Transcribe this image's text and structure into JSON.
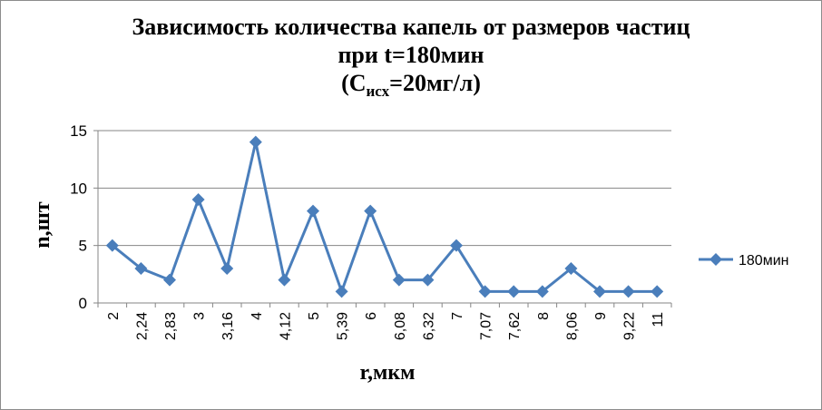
{
  "chart_data": {
    "type": "line",
    "title": {
      "line1": "Зависимость количества капель от размеров частиц",
      "line2": "при t=180мин",
      "line3_prefix": "(C",
      "line3_sub": "исх",
      "line3_suffix": "=20мг/л)"
    },
    "xlabel": "r,мкм",
    "ylabel": "n,шт",
    "categories": [
      "2",
      "2,24",
      "2,83",
      "3",
      "3,16",
      "4",
      "4,12",
      "5",
      "5,39",
      "6",
      "6,08",
      "6,32",
      "7",
      "7,07",
      "7,62",
      "8",
      "8,06",
      "9",
      "9,22",
      "11"
    ],
    "series": [
      {
        "name": "180мин",
        "values": [
          5,
          3,
          2,
          9,
          3,
          14,
          2,
          8,
          1,
          8,
          2,
          2,
          5,
          1,
          1,
          1,
          3,
          1,
          1,
          1
        ],
        "color": "#4a7ebb",
        "marker": "diamond"
      }
    ],
    "ylim": [
      0,
      15
    ],
    "yticks": [
      0,
      5,
      10,
      15
    ],
    "grid": true,
    "legend_position": "right"
  }
}
